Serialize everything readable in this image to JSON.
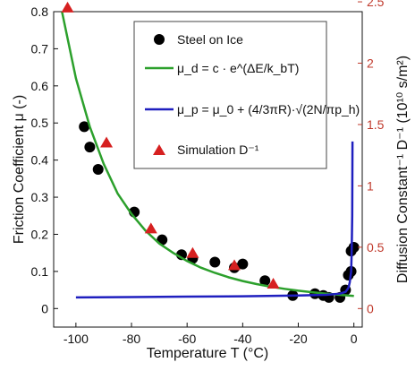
{
  "chart_data": {
    "type": "scatter",
    "title": "",
    "xlabel": "Temperature T (°C)",
    "ylabel_left": "Friction Coefficient μ (-)",
    "ylabel_right": "Diffusion Constant⁻¹ D⁻¹ (10¹⁰ s/m²)",
    "xlim": [
      -108,
      3
    ],
    "ylim_left": [
      -0.05,
      0.8
    ],
    "ylim_right": [
      -0.151,
      2.42
    ],
    "x_ticks": [
      -100,
      -80,
      -60,
      -40,
      -20,
      0
    ],
    "y_ticks_left": [
      0,
      0.1,
      0.2,
      0.3,
      0.4,
      0.5,
      0.6,
      0.7,
      0.8
    ],
    "y_ticks_right": [
      0,
      0.5,
      1,
      1.5,
      2,
      2.5
    ],
    "legend_position": "top-right",
    "grid": false,
    "colors": {
      "steel": "#000000",
      "mu_d": "#2ca02c",
      "mu_p": "#1f1fbf",
      "simulation": "#d62020",
      "right_axis": "#c0392b"
    },
    "series": [
      {
        "name": "Steel on Ice",
        "marker": "circle",
        "axis": "left",
        "points": [
          [
            -97,
            0.49
          ],
          [
            -95,
            0.435
          ],
          [
            -92,
            0.375
          ],
          [
            -79,
            0.26
          ],
          [
            -69,
            0.185
          ],
          [
            -62,
            0.145
          ],
          [
            -58,
            0.135
          ],
          [
            -50,
            0.125
          ],
          [
            -43,
            0.11
          ],
          [
            -40,
            0.12
          ],
          [
            -32,
            0.075
          ],
          [
            -22,
            0.035
          ],
          [
            -14,
            0.04
          ],
          [
            -11,
            0.035
          ],
          [
            -9,
            0.03
          ],
          [
            -5,
            0.03
          ],
          [
            -3,
            0.05
          ],
          [
            -2,
            0.09
          ],
          [
            -1,
            0.1
          ],
          [
            -1,
            0.155
          ],
          [
            0,
            0.165
          ]
        ]
      },
      {
        "name": "μ_d = c · e^(ΔE/k_bT)",
        "line": "curve",
        "axis": "left",
        "points": [
          [
            -105,
            0.8
          ],
          [
            -100,
            0.62
          ],
          [
            -95,
            0.49
          ],
          [
            -90,
            0.39
          ],
          [
            -85,
            0.31
          ],
          [
            -80,
            0.255
          ],
          [
            -75,
            0.21
          ],
          [
            -70,
            0.175
          ],
          [
            -65,
            0.15
          ],
          [
            -60,
            0.128
          ],
          [
            -55,
            0.11
          ],
          [
            -50,
            0.096
          ],
          [
            -45,
            0.084
          ],
          [
            -40,
            0.074
          ],
          [
            -35,
            0.066
          ],
          [
            -30,
            0.059
          ],
          [
            -25,
            0.053
          ],
          [
            -20,
            0.048
          ],
          [
            -15,
            0.044
          ],
          [
            -10,
            0.04
          ],
          [
            -5,
            0.037
          ],
          [
            0,
            0.034
          ]
        ]
      },
      {
        "name": "μ_p = μ_0 + (4/3πR)·√(2N/πp_h)",
        "line": "curve",
        "axis": "left",
        "points": [
          [
            -100,
            0.03
          ],
          [
            -80,
            0.031
          ],
          [
            -60,
            0.032
          ],
          [
            -40,
            0.033
          ],
          [
            -20,
            0.035
          ],
          [
            -10,
            0.037
          ],
          [
            -5,
            0.04
          ],
          [
            -3,
            0.045
          ],
          [
            -2,
            0.055
          ],
          [
            -1.5,
            0.07
          ],
          [
            -1,
            0.1
          ],
          [
            -0.8,
            0.15
          ],
          [
            -0.6,
            0.25
          ],
          [
            -0.5,
            0.45
          ]
        ]
      },
      {
        "name": "Simulation D⁻¹",
        "marker": "triangle",
        "axis": "right",
        "points": [
          [
            -103,
            2.45
          ],
          [
            -89,
            1.35
          ],
          [
            -73,
            0.65
          ],
          [
            -58,
            0.45
          ],
          [
            -43,
            0.35
          ],
          [
            -29,
            0.2
          ]
        ]
      }
    ]
  }
}
